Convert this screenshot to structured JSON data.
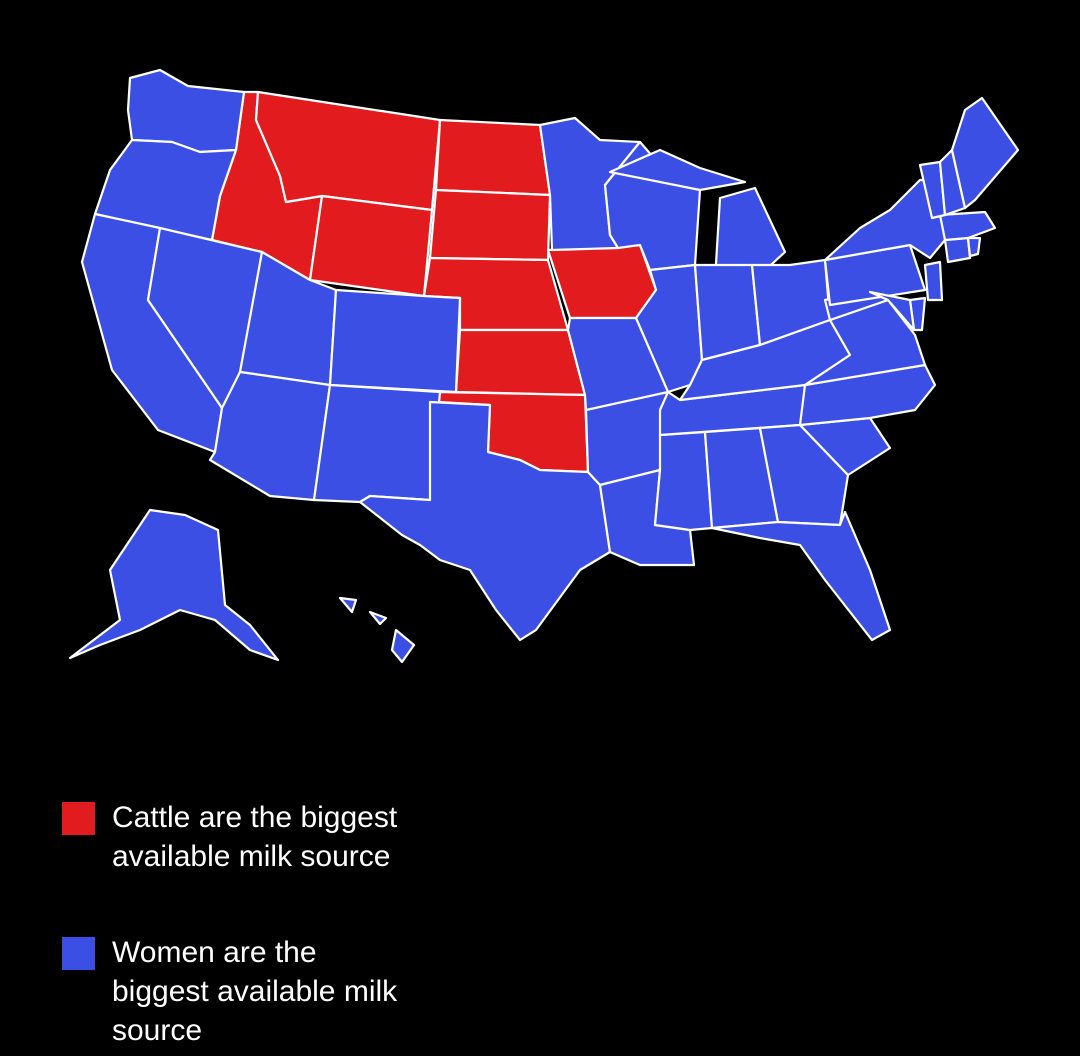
{
  "colors": {
    "background": "#000000",
    "cattle": "#e21c1e",
    "women": "#3b4fe4",
    "border": "#ffffff"
  },
  "legend": [
    {
      "category": "cattle",
      "label": "Cattle are the biggest available milk source"
    },
    {
      "category": "women",
      "label": "Women are the biggest available milk source"
    }
  ],
  "states": {
    "cattle": [
      "ID",
      "MT",
      "WY",
      "ND",
      "SD",
      "NE",
      "KS",
      "OK",
      "IA"
    ],
    "women": [
      "WA",
      "OR",
      "CA",
      "NV",
      "UT",
      "AZ",
      "CO",
      "NM",
      "TX",
      "MN",
      "WI",
      "MI",
      "IL",
      "IN",
      "OH",
      "MO",
      "AR",
      "LA",
      "MS",
      "AL",
      "TN",
      "KY",
      "GA",
      "FL",
      "SC",
      "NC",
      "VA",
      "WV",
      "PA",
      "NY",
      "NJ",
      "DE",
      "MD",
      "CT",
      "RI",
      "MA",
      "VT",
      "NH",
      "ME",
      "AK",
      "HI"
    ]
  }
}
